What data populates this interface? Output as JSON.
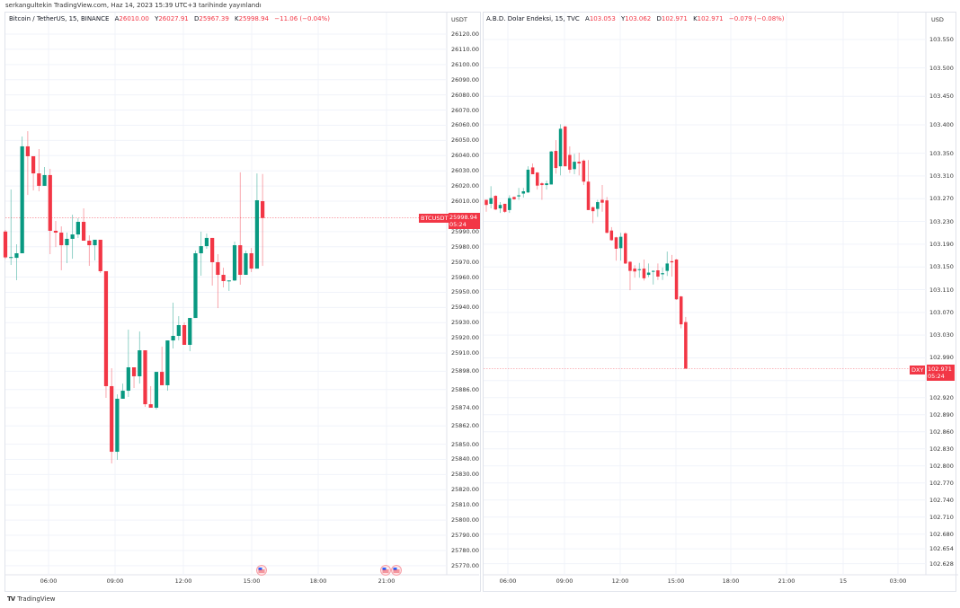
{
  "caption": "serkangultekin TradingView.com, Haz 14, 2023 15:39 UTC+3 tarihinde yayınlandı",
  "branding": {
    "logo_text": "TradingView",
    "logo_mark": "TV"
  },
  "colors": {
    "up": "#089981",
    "down": "#f23645",
    "grid": "#f0f3fa",
    "border": "#e0e3eb"
  },
  "left_chart": {
    "symbol": "Bitcoin / TetherUS, 15, BINANCE",
    "ohlc": [
      {
        "key": "A",
        "value": "26010.00"
      },
      {
        "key": "Y",
        "value": "26027.91"
      },
      {
        "key": "D",
        "value": "25967.39"
      },
      {
        "key": "K",
        "value": "25998.94"
      }
    ],
    "change": "−11.06 (−0.04%)",
    "currency": "USDT",
    "price_tag": {
      "ticker": "BTCUSDT",
      "price": "25998.94",
      "countdown": "05:24"
    },
    "event_icons": [
      "us-flag-icon",
      "us-flag-icon",
      "us-flag-icon"
    ]
  },
  "right_chart": {
    "symbol": "A.B.D. Dolar Endeksi, 15, TVC",
    "ohlc": [
      {
        "key": "A",
        "value": "103.053"
      },
      {
        "key": "Y",
        "value": "103.062"
      },
      {
        "key": "D",
        "value": "102.971"
      },
      {
        "key": "K",
        "value": "102.971"
      }
    ],
    "change": "−0.079 (−0.08%)",
    "currency": "USD",
    "price_tag": {
      "ticker": "DXY",
      "price": "102.971",
      "countdown": "05:24"
    }
  },
  "chart_data": [
    {
      "type": "candlestick",
      "title": "Bitcoin / TetherUS, 15, BINANCE",
      "interval": "15",
      "y_ticks": [
        "26120.00",
        "26110.00",
        "26100.00",
        "26090.00",
        "26080.00",
        "26070.00",
        "26060.00",
        "26050.00",
        "26040.00",
        "26030.00",
        "26020.00",
        "26010.00",
        "25990.00",
        "25980.00",
        "25970.00",
        "25960.00",
        "25950.00",
        "25940.00",
        "25930.00",
        "25920.00",
        "25910.00",
        "25898.00",
        "25886.00",
        "25874.00",
        "25862.00",
        "25850.00",
        "25840.00",
        "25830.00",
        "25820.00",
        "25810.00",
        "25800.00",
        "25790.00",
        "25780.00",
        "25770.00"
      ],
      "x_ticks": [
        "06:00",
        "09:00",
        "12:00",
        "15:00",
        "18:00",
        "21:00"
      ],
      "ylim": [
        25765,
        26128
      ],
      "grid": true,
      "last_price": 25998.94,
      "ohlc": [
        [
          25990,
          25991,
          25972,
          25973
        ],
        [
          25972.7,
          26017.7,
          25968,
          25973.2
        ],
        [
          25972.7,
          25981.6,
          25958,
          25975.7
        ],
        [
          25975.7,
          26052.6,
          25975.7,
          26046.1
        ],
        [
          26046.1,
          26056.1,
          26014.1,
          26039.6
        ],
        [
          26039.6,
          26039.6,
          26017.1,
          26028.3
        ],
        [
          26028.3,
          26044.3,
          26016.5,
          26020.1
        ],
        [
          26020.1,
          26032.5,
          26020.1,
          26027.2
        ],
        [
          26027.2,
          26031.3,
          25975.1,
          25990.5
        ],
        [
          25990.5,
          25997,
          25979.8,
          25989.3
        ],
        [
          25989.3,
          25993.4,
          25964.5,
          25981
        ],
        [
          25981,
          25989.3,
          25969.2,
          25985.2
        ],
        [
          25985.2,
          26001.1,
          25972.1,
          25988.1
        ],
        [
          25988.1,
          25998.8,
          25985.8,
          25996.4
        ],
        [
          25996.4,
          26005.3,
          25984,
          25984
        ],
        [
          25984,
          25987.5,
          25967.4,
          25981
        ],
        [
          25981,
          25984.6,
          25971,
          25984.6
        ],
        [
          25984.6,
          25984.6,
          25962.7,
          25963.9
        ],
        [
          25963.9,
          25963.9,
          25880.5,
          25888.2
        ],
        [
          25888.2,
          25900,
          25837.3,
          25845
        ],
        [
          25845,
          25882.8,
          25839.7,
          25879.9
        ],
        [
          25879.9,
          25889.9,
          25879.9,
          25885.2
        ],
        [
          25885.2,
          25925.4,
          25881.1,
          25900.6
        ],
        [
          25900.6,
          25900.6,
          25887,
          25894.7
        ],
        [
          25894.7,
          25924.2,
          25889.9,
          25911.8
        ],
        [
          25911.8,
          25911.8,
          25874.6,
          25876.3
        ],
        [
          25876.3,
          25888.2,
          25874,
          25874
        ],
        [
          25874,
          25897.6,
          25872.8,
          25897.6
        ],
        [
          25897.6,
          25914.2,
          25888.8,
          25888.8
        ],
        [
          25888.8,
          25918.3,
          25885.2,
          25918.3
        ],
        [
          25918.3,
          25943.2,
          25913,
          25921.3
        ],
        [
          25921.3,
          25934.3,
          25918.3,
          25928.4
        ],
        [
          25928.4,
          25930.2,
          25915.4,
          25915.4
        ],
        [
          25915.4,
          25933.1,
          25911.2,
          25933.1
        ],
        [
          25933.1,
          25977.5,
          25933.1,
          25975.7
        ],
        [
          25975.7,
          25989.9,
          25960.9,
          25980.4
        ],
        [
          25980.4,
          25988.7,
          25978.7,
          25985.8
        ],
        [
          25985.8,
          25985.8,
          25954.4,
          25969.8
        ],
        [
          25969.8,
          25975.1,
          25939.6,
          25961.5
        ],
        [
          25961.5,
          25966.2,
          25953.2,
          25957.4
        ],
        [
          25957.4,
          25957.8,
          25950.9,
          25957.8
        ],
        [
          25957.8,
          25983.4,
          25957.4,
          25981
        ],
        [
          25981,
          26029,
          25955,
          25961.5
        ],
        [
          25961.5,
          25977.5,
          25961.5,
          25975.7
        ],
        [
          25975.7,
          25979.2,
          25963.3,
          25965.6
        ],
        [
          25965.6,
          26028.3,
          25965.6,
          26010.6
        ],
        [
          26010.0,
          26027.91,
          25967.39,
          25998.94
        ]
      ]
    },
    {
      "type": "candlestick",
      "title": "A.B.D. Dolar Endeksi, 15, TVC",
      "interval": "15",
      "y_ticks": [
        "103.550",
        "103.500",
        "103.450",
        "103.400",
        "103.350",
        "103.310",
        "103.270",
        "103.230",
        "103.190",
        "103.150",
        "103.110",
        "103.070",
        "103.030",
        "102.990",
        "102.950",
        "102.920",
        "102.890",
        "102.860",
        "102.830",
        "102.800",
        "102.770",
        "102.740",
        "102.710",
        "102.680",
        "102.654",
        "102.628"
      ],
      "x_ticks": [
        "06:00",
        "09:00",
        "12:00",
        "15:00",
        "18:00",
        "21:00",
        "15",
        "03:00"
      ],
      "ylim": [
        102.62,
        103.56
      ],
      "grid": true,
      "last_price": 102.971,
      "ohlc": [
        [
          103.268,
          103.268,
          103.247,
          103.259
        ],
        [
          103.261,
          103.292,
          103.253,
          103.271
        ],
        [
          103.275,
          103.276,
          103.25,
          103.251
        ],
        [
          103.253,
          103.264,
          103.245,
          103.259
        ],
        [
          103.261,
          103.261,
          103.245,
          103.247
        ],
        [
          103.25,
          103.276,
          103.245,
          103.271
        ],
        [
          103.273,
          103.274,
          103.268,
          103.269
        ],
        [
          103.274,
          103.289,
          103.268,
          103.276
        ],
        [
          103.279,
          103.289,
          103.272,
          103.283
        ],
        [
          103.281,
          103.327,
          103.28,
          103.321
        ],
        [
          103.325,
          103.332,
          103.313,
          103.313
        ],
        [
          103.316,
          103.317,
          103.286,
          103.293
        ],
        [
          103.297,
          103.299,
          103.268,
          103.294
        ],
        [
          103.294,
          103.302,
          103.286,
          103.297
        ],
        [
          103.295,
          103.354,
          103.295,
          103.353
        ],
        [
          103.354,
          103.373,
          103.314,
          103.324
        ],
        [
          103.327,
          103.401,
          103.311,
          103.393
        ],
        [
          103.397,
          103.398,
          103.327,
          103.327
        ],
        [
          103.347,
          103.362,
          103.315,
          103.321
        ],
        [
          103.322,
          103.349,
          103.313,
          103.335
        ],
        [
          103.335,
          103.351,
          103.311,
          103.332
        ],
        [
          103.337,
          103.339,
          103.294,
          103.3
        ],
        [
          103.3,
          103.338,
          103.25,
          103.25
        ],
        [
          103.255,
          103.256,
          103.227,
          103.248
        ],
        [
          103.252,
          103.268,
          103.238,
          103.264
        ],
        [
          103.268,
          103.294,
          103.247,
          103.263
        ],
        [
          103.267,
          103.273,
          103.209,
          103.21
        ],
        [
          103.214,
          103.22,
          103.196,
          103.197
        ],
        [
          103.202,
          103.203,
          103.161,
          103.182
        ],
        [
          103.183,
          103.21,
          103.161,
          103.203
        ],
        [
          103.209,
          103.211,
          103.155,
          103.156
        ],
        [
          103.159,
          103.16,
          103.109,
          103.143
        ],
        [
          103.147,
          103.153,
          103.131,
          103.142
        ],
        [
          103.145,
          103.157,
          103.131,
          103.146
        ],
        [
          103.147,
          103.163,
          103.126,
          103.13
        ],
        [
          103.136,
          103.156,
          103.132,
          103.14
        ],
        [
          103.142,
          103.144,
          103.119,
          103.143
        ],
        [
          103.144,
          103.156,
          103.127,
          103.133
        ],
        [
          103.137,
          103.149,
          103.127,
          103.139
        ],
        [
          103.143,
          103.177,
          103.134,
          103.156
        ],
        [
          103.16,
          103.171,
          103.133,
          103.158
        ],
        [
          103.163,
          103.164,
          103.092,
          103.093
        ],
        [
          103.098,
          103.099,
          103.042,
          103.049
        ],
        [
          103.053,
          103.062,
          102.971,
          102.971
        ]
      ]
    }
  ]
}
